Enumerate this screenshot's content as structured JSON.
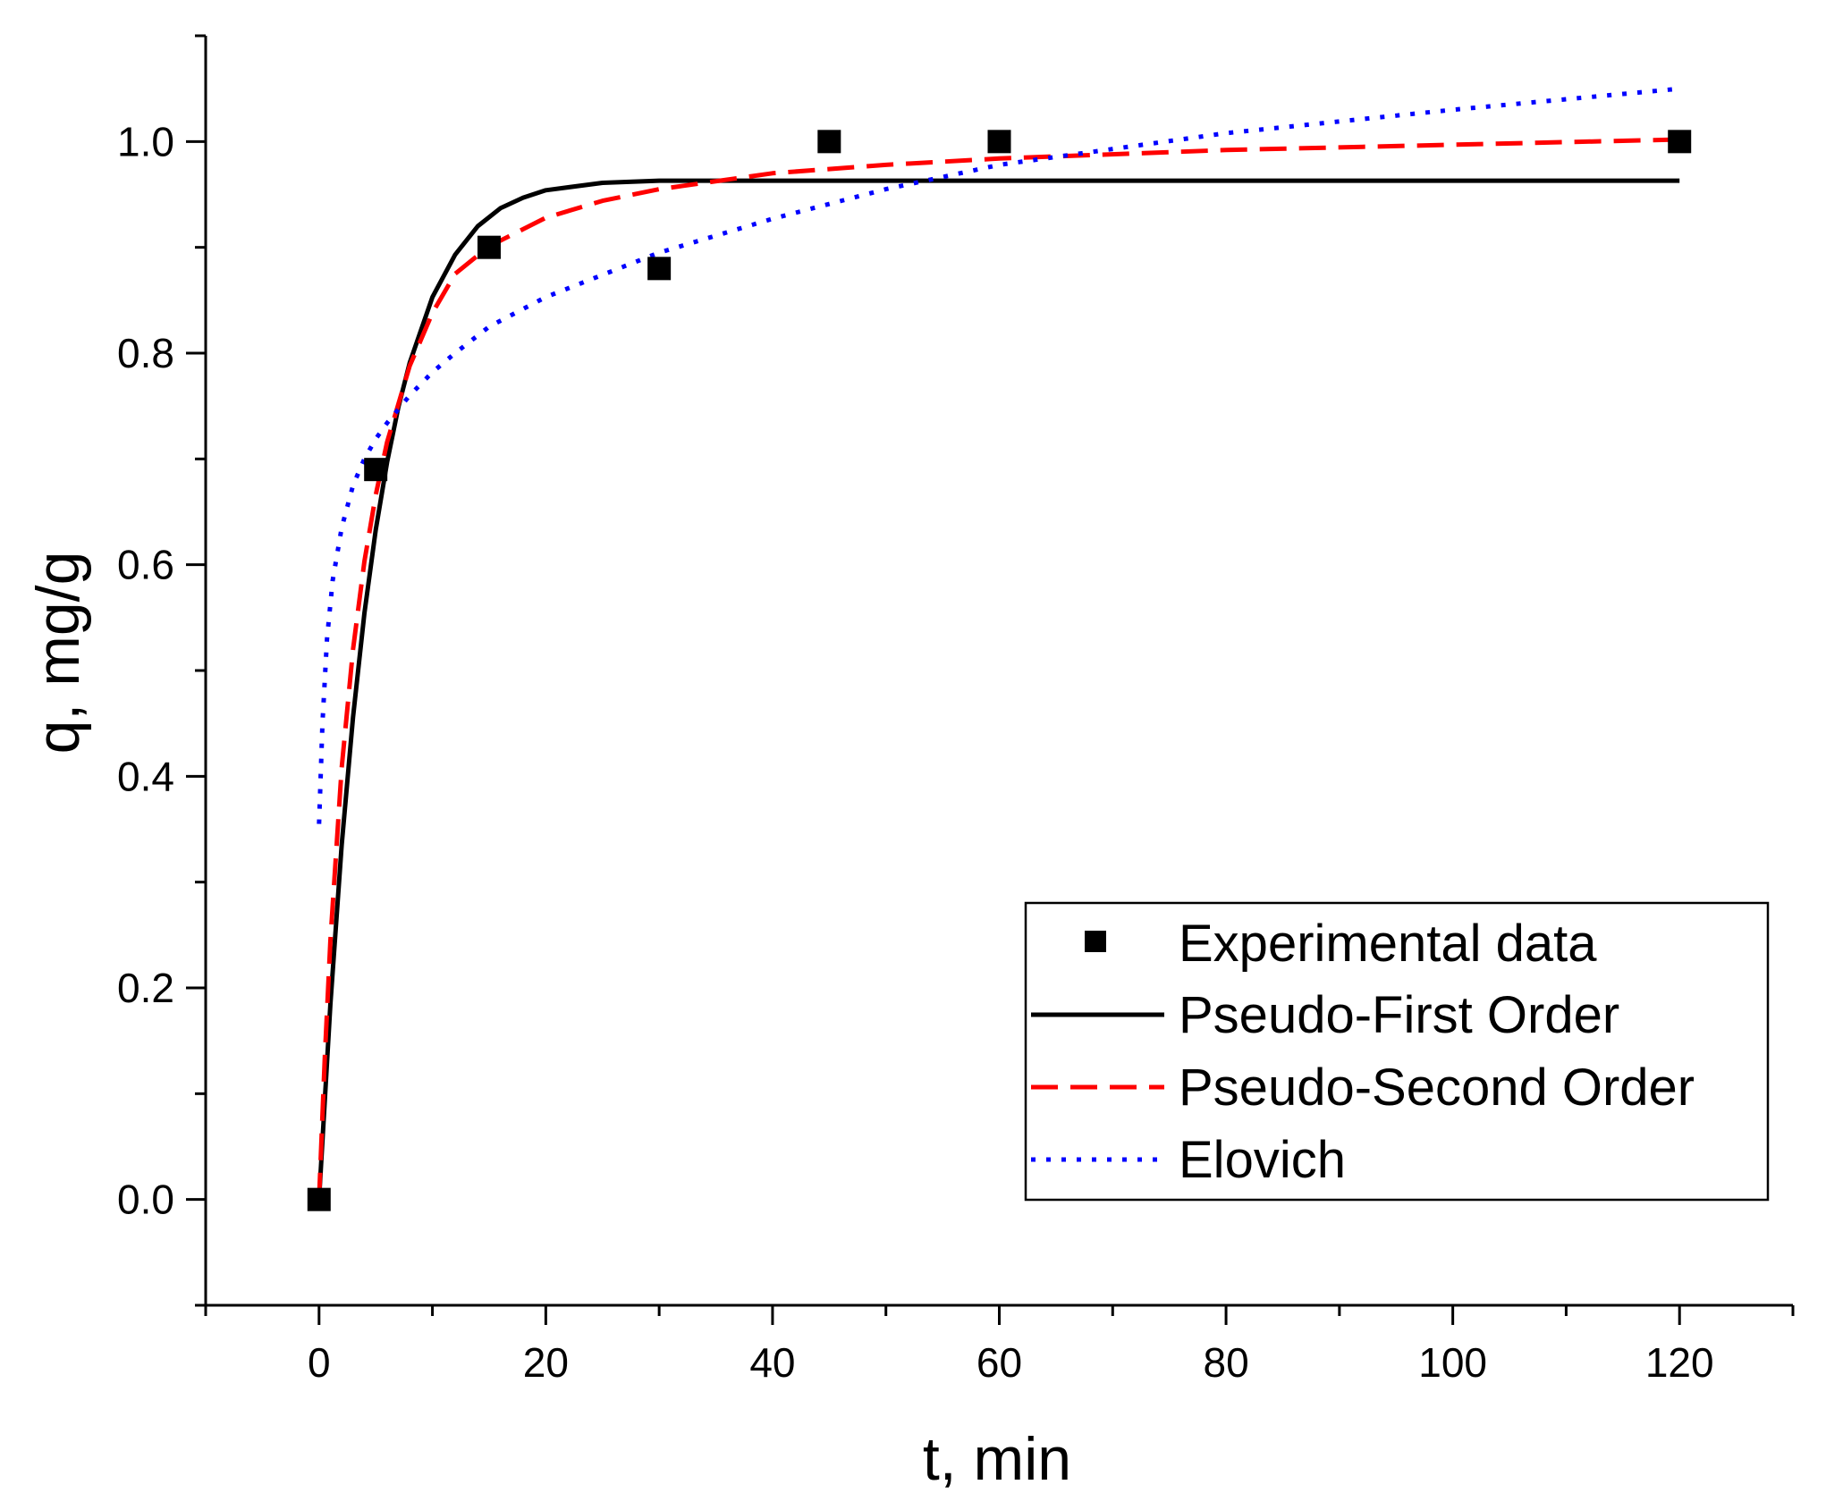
{
  "chart_data": {
    "type": "scatter",
    "title": "",
    "xlabel": "t, min",
    "ylabel": "q, mg/g",
    "xlim": [
      -10,
      130
    ],
    "ylim": [
      -0.1,
      1.1
    ],
    "xticks": [
      0,
      20,
      40,
      60,
      80,
      100,
      120
    ],
    "xtick_labels": [
      "0",
      "20",
      "40",
      "60",
      "80",
      "100",
      "120"
    ],
    "yticks": [
      0.0,
      0.2,
      0.4,
      0.6,
      0.8,
      1.0
    ],
    "ytick_labels": [
      "0.0",
      "0.2",
      "0.4",
      "0.6",
      "0.8",
      "1.0"
    ],
    "grid": false,
    "legend_position": "bottom-right",
    "series": [
      {
        "name": "Experimental data",
        "kind": "markers",
        "marker": "square",
        "color": "#000000",
        "x": [
          0,
          5,
          15,
          30,
          45,
          60,
          120
        ],
        "y": [
          0.0,
          0.69,
          0.9,
          0.88,
          1.0,
          1.0,
          1.0
        ]
      },
      {
        "name": "Pseudo-First Order",
        "kind": "line",
        "style": "solid",
        "color": "#000000",
        "x": [
          0,
          1,
          2,
          3,
          4,
          5,
          6,
          7,
          8,
          10,
          12,
          14,
          16,
          18,
          20,
          25,
          30,
          40,
          60,
          80,
          100,
          120
        ],
        "y": [
          0.0,
          0.185,
          0.335,
          0.456,
          0.554,
          0.633,
          0.697,
          0.749,
          0.791,
          0.853,
          0.893,
          0.92,
          0.937,
          0.947,
          0.954,
          0.961,
          0.963,
          0.963,
          0.963,
          0.963,
          0.963,
          0.963
        ]
      },
      {
        "name": "Pseudo-Second Order",
        "kind": "line",
        "style": "dashed",
        "color": "#ff0000",
        "x": [
          0,
          0.5,
          1,
          2,
          3,
          4,
          5,
          6,
          8,
          10,
          12,
          15,
          20,
          25,
          30,
          40,
          50,
          60,
          80,
          100,
          120
        ],
        "y": [
          0.0,
          0.132,
          0.245,
          0.408,
          0.52,
          0.603,
          0.666,
          0.716,
          0.788,
          0.838,
          0.875,
          0.901,
          0.928,
          0.944,
          0.955,
          0.97,
          0.978,
          0.984,
          0.992,
          0.997,
          1.002
        ]
      },
      {
        "name": "Elovich",
        "kind": "line",
        "style": "dotted",
        "color": "#0000ff",
        "x": [
          0,
          0.3,
          0.7,
          1.2,
          2,
          3,
          4,
          5,
          6,
          8,
          10,
          12,
          15,
          20,
          30,
          40,
          50,
          60,
          80,
          100,
          120
        ],
        "y": [
          0.355,
          0.45,
          0.53,
          0.585,
          0.635,
          0.675,
          0.7,
          0.719,
          0.734,
          0.76,
          0.782,
          0.8,
          0.825,
          0.853,
          0.895,
          0.927,
          0.955,
          0.978,
          1.008,
          1.03,
          1.05
        ]
      }
    ]
  }
}
